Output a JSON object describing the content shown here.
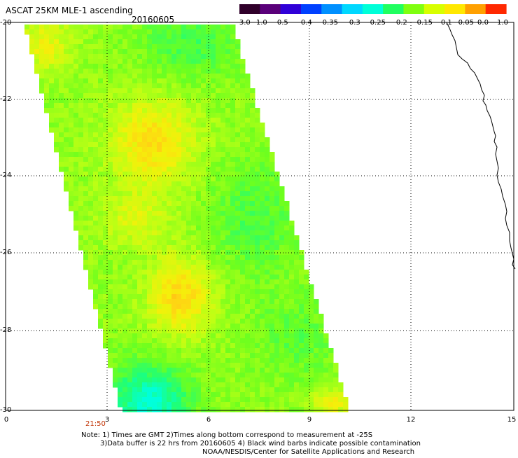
{
  "header": {
    "title": "ASCAT 25KM MLE-1 ascending",
    "date": "20160605"
  },
  "colorbar": {
    "labels": [
      "-3.0",
      "-1.0",
      "-0.5",
      "-0.4",
      "-0.35",
      "-0.3",
      "-0.25",
      "-0.2",
      "-0.15",
      "-0.1",
      "-0.05",
      "0.0",
      "1.0"
    ],
    "colors": [
      "#30002a",
      "#5a007a",
      "#3000d8",
      "#0040ff",
      "#0090ff",
      "#00d8ff",
      "#00ffd8",
      "#20ff60",
      "#80ff10",
      "#d8ff00",
      "#ffe800",
      "#ffa000",
      "#ff2800"
    ]
  },
  "axes": {
    "y_ticks": [
      "-20",
      "-22",
      "-24",
      "-26",
      "-28",
      "-30"
    ],
    "x_ticks": [
      "0",
      "3",
      "6",
      "9",
      "12",
      "15"
    ],
    "time_label": "21:50"
  },
  "notes": {
    "line1": "Note: 1) Times are GMT 2)Times along bottom correspond to measurement at -25S",
    "line2": "3)Data buffer is 22 hrs from 20160605 4) Black wind barbs indicate possible contamination",
    "line3": "NOAA/NESDIS/Center for Satellite Applications and Research"
  },
  "colors": {
    "gridline": "#000000",
    "coastline": "#000000",
    "time_label": "#c03000"
  }
}
